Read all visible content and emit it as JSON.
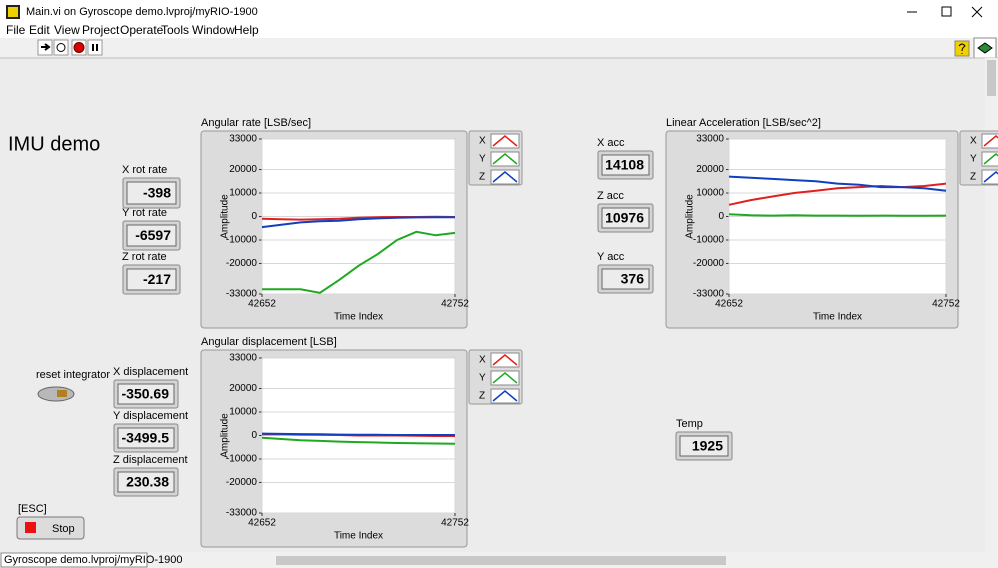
{
  "window": {
    "title": "Main.vi on Gyroscope demo.lvproj/myRIO-1900"
  },
  "menu": [
    "File",
    "Edit",
    "View",
    "Project",
    "Operate",
    "Tools",
    "Window",
    "Help"
  ],
  "panel": {
    "heading": "IMU demo",
    "indicators": [
      {
        "label": "X rot rate",
        "value": -398
      },
      {
        "label": "Y rot rate",
        "value": -6597
      },
      {
        "label": "Z rot rate",
        "value": -217
      },
      {
        "label": "X displacement",
        "value": -350.69
      },
      {
        "label": "Y displacement",
        "value": -3499.5
      },
      {
        "label": "Z displacement",
        "value": 230.38
      },
      {
        "label": "X acc",
        "value": 14108
      },
      {
        "label": "Z acc",
        "value": 10976
      },
      {
        "label": "Y acc",
        "value": 376
      },
      {
        "label": "Temp",
        "value": 1925
      }
    ],
    "reset_label": "reset integrator",
    "stop": {
      "label": "[ESC]",
      "text": "Stop"
    }
  },
  "status_bar": "Gyroscope demo.lvproj/myRIO-1900",
  "chart_data": [
    {
      "type": "line",
      "title": "Angular rate [LSB/sec]",
      "x_label": "Time Index",
      "y_label": "Amplitude",
      "x": [
        42652,
        42662,
        42672,
        42682,
        42692,
        42702,
        42712,
        42722,
        42732,
        42742,
        42752
      ],
      "xlim": [
        42652,
        42752
      ],
      "xticks": [
        42652,
        42752
      ],
      "ylim": [
        -33000,
        33000
      ],
      "yticks": [
        33000,
        20000,
        10000,
        0,
        -10000,
        -20000,
        -33000
      ],
      "grid": true,
      "series": [
        {
          "name": "X",
          "color": "#e02020",
          "values": [
            -1000,
            -1200,
            -1300,
            -1200,
            -1000,
            -500,
            -300,
            -200,
            -200,
            -100,
            -200
          ]
        },
        {
          "name": "Y",
          "color": "#20a820",
          "values": [
            -31000,
            -31000,
            -31000,
            -32500,
            -27000,
            -21000,
            -16000,
            -10000,
            -6500,
            -8000,
            -7000
          ]
        },
        {
          "name": "Z",
          "color": "#1040c0",
          "values": [
            -4500,
            -3500,
            -2500,
            -2000,
            -1800,
            -1200,
            -800,
            -500,
            -400,
            -300,
            -300
          ]
        }
      ]
    },
    {
      "type": "line",
      "title": "Angular displacement [LSB]",
      "x_label": "Time Index",
      "y_label": "Amplitude",
      "x": [
        42652,
        42662,
        42672,
        42682,
        42692,
        42702,
        42712,
        42722,
        42732,
        42742,
        42752
      ],
      "xlim": [
        42652,
        42752
      ],
      "xticks": [
        42652,
        42752
      ],
      "ylim": [
        -33000,
        33000
      ],
      "yticks": [
        33000,
        20000,
        10000,
        0,
        -10000,
        -20000,
        -33000
      ],
      "grid": true,
      "series": [
        {
          "name": "X",
          "color": "#e02020",
          "values": [
            500,
            500,
            400,
            300,
            200,
            0,
            0,
            0,
            -100,
            -200,
            -200
          ]
        },
        {
          "name": "Y",
          "color": "#20a820",
          "values": [
            -1000,
            -1500,
            -2000,
            -2300,
            -2600,
            -2800,
            -3000,
            -3200,
            -3300,
            -3400,
            -3500
          ]
        },
        {
          "name": "Z",
          "color": "#1040c0",
          "values": [
            800,
            700,
            600,
            500,
            400,
            300,
            300,
            200,
            200,
            200,
            200
          ]
        }
      ]
    },
    {
      "type": "line",
      "title": "Linear Acceleration [LSB/sec^2]",
      "x_label": "Time Index",
      "y_label": "Amplitude",
      "x": [
        42652,
        42662,
        42672,
        42682,
        42692,
        42702,
        42712,
        42722,
        42732,
        42742,
        42752
      ],
      "xlim": [
        42652,
        42752
      ],
      "xticks": [
        42652,
        42752
      ],
      "ylim": [
        -33000,
        33000
      ],
      "yticks": [
        33000,
        20000,
        10000,
        0,
        -10000,
        -20000,
        -33000
      ],
      "grid": true,
      "series": [
        {
          "name": "X",
          "color": "#e02020",
          "values": [
            5000,
            7000,
            8500,
            10000,
            11000,
            12000,
            12500,
            13000,
            12500,
            13000,
            14000
          ]
        },
        {
          "name": "Y",
          "color": "#20a820",
          "values": [
            1000,
            500,
            400,
            500,
            400,
            400,
            300,
            400,
            300,
            300,
            376
          ]
        },
        {
          "name": "Z",
          "color": "#1040c0",
          "values": [
            17000,
            16500,
            16000,
            15500,
            15000,
            14000,
            13500,
            12500,
            12500,
            12000,
            11000
          ]
        }
      ]
    }
  ]
}
